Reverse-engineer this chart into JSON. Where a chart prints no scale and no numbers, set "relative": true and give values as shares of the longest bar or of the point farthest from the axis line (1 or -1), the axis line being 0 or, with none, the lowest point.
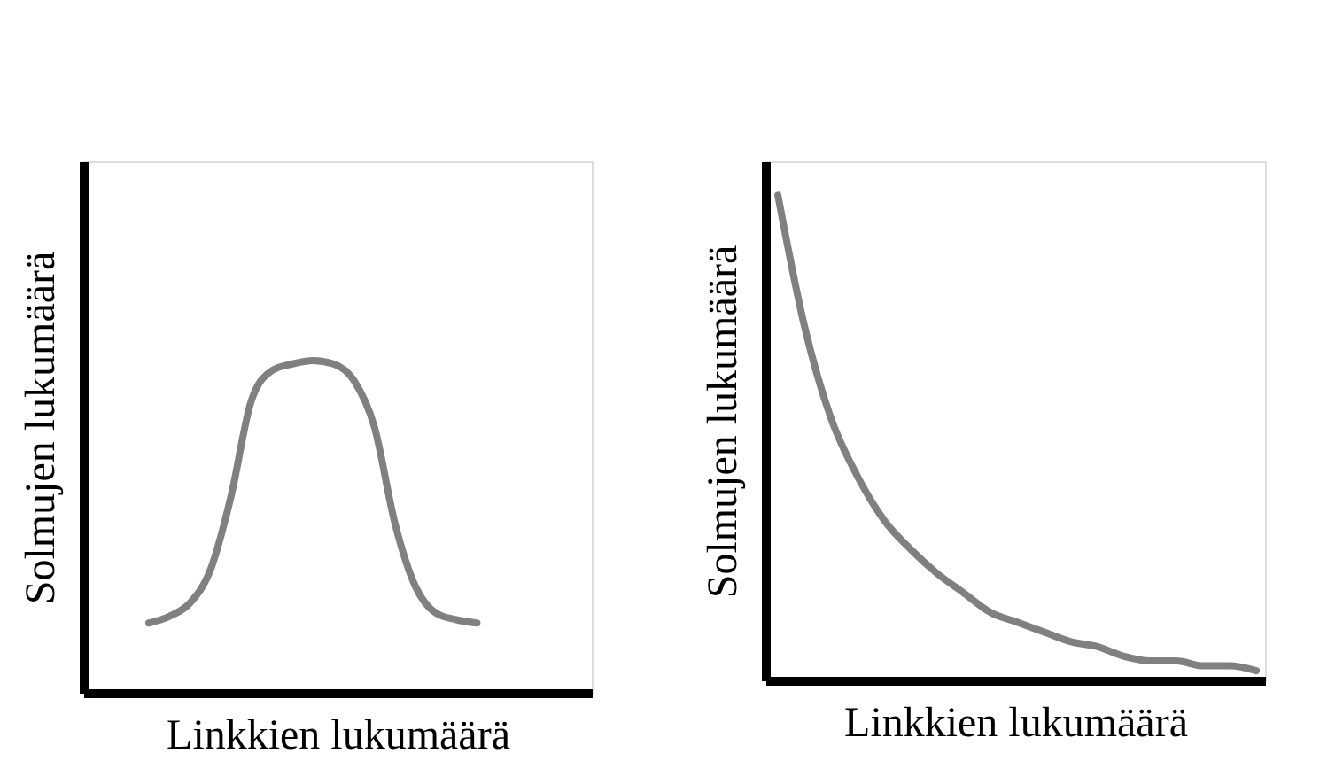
{
  "chart_data": [
    {
      "type": "line",
      "relative": true,
      "xlabel": "Linkkien lukumäärä",
      "ylabel": "Solmujen lukumäärä",
      "tick_labels": false,
      "grid": false,
      "color": "#808080",
      "categories": [
        null,
        null,
        null,
        null,
        null,
        null,
        null,
        null,
        null,
        null,
        null,
        null,
        null,
        null,
        null,
        null,
        null
      ],
      "values": [
        0.21,
        0.23,
        0.27,
        0.37,
        0.59,
        0.88,
        0.97,
        0.99,
        1,
        0.99,
        0.94,
        0.8,
        0.51,
        0.32,
        0.24,
        0.22,
        0.21
      ]
    },
    {
      "type": "line",
      "relative": true,
      "xlabel": "Linkkien lukumäärä",
      "ylabel": "Solmujen lukumäärä",
      "tick_labels": false,
      "grid": false,
      "color": "#808080",
      "categories": [
        null,
        null,
        null,
        null,
        null,
        null,
        null,
        null,
        null,
        null,
        null,
        null,
        null,
        null,
        null,
        null,
        null,
        null,
        null
      ],
      "values": [
        1,
        0.73,
        0.54,
        0.42,
        0.33,
        0.27,
        0.22,
        0.18,
        0.14,
        0.12,
        0.1,
        0.08,
        0.07,
        0.05,
        0.04,
        0.04,
        0.03,
        0.03,
        0.02
      ]
    }
  ]
}
